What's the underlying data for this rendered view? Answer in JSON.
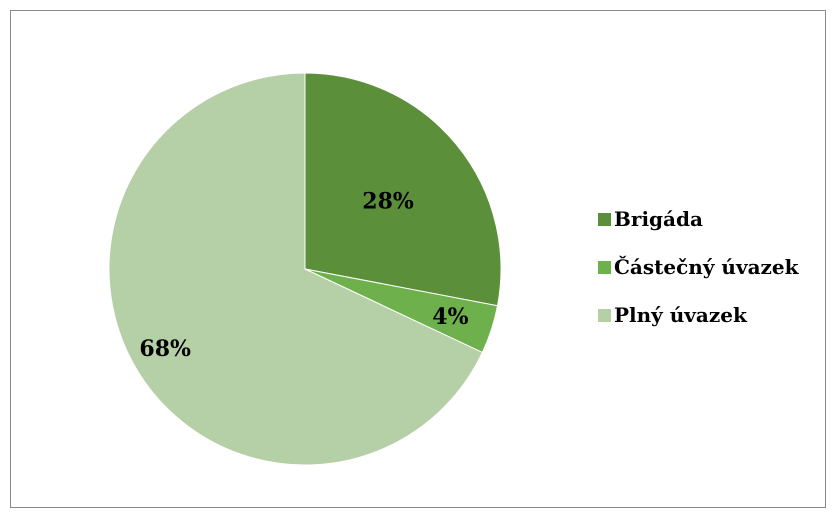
{
  "chart_data": {
    "type": "pie",
    "title": "",
    "categories": [
      "Brigáda",
      "Částečný úvazek",
      "Plný úvazek"
    ],
    "values": [
      28,
      4,
      68
    ],
    "labels": [
      "28%",
      "4%",
      "68%"
    ],
    "colors": [
      "#5b8f3a",
      "#6db04c",
      "#b5cfa6"
    ],
    "legend_position": "right"
  },
  "legend": {
    "items": [
      {
        "label": "Brigáda",
        "color": "#5b8f3a"
      },
      {
        "label": "Částečný úvazek",
        "color": "#6db04c"
      },
      {
        "label": "Plný úvazek",
        "color": "#b5cfa6"
      }
    ]
  }
}
